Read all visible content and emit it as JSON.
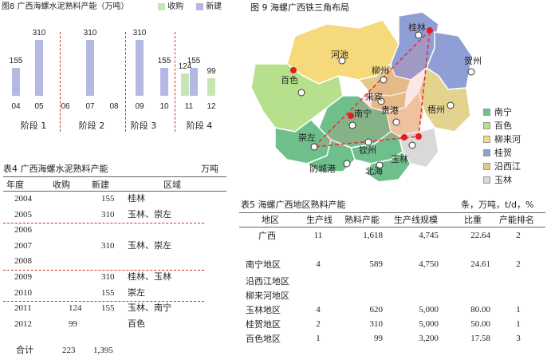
{
  "fig8": {
    "title": "图8 广西海螺水泥熟料产能（万吨）",
    "legend": [
      {
        "label": "收购",
        "color": "#c8e6b4"
      },
      {
        "label": "新建",
        "color": "#b6b8e4"
      }
    ],
    "stages": [
      "阶段 1",
      "阶段 2",
      "阶段 3",
      "阶段 4"
    ],
    "chart_data": {
      "type": "bar",
      "title": "图8 广西海螺水泥熟料产能（万吨）",
      "categories": [
        "04",
        "05",
        "06",
        "07",
        "08",
        "09",
        "10",
        "11",
        "12"
      ],
      "series": [
        {
          "name": "收购",
          "values": [
            null,
            null,
            null,
            null,
            null,
            null,
            null,
            124,
            99
          ]
        },
        {
          "name": "新建",
          "values": [
            155,
            310,
            null,
            310,
            null,
            310,
            155,
            155,
            null
          ]
        }
      ],
      "ylim": [
        0,
        330
      ],
      "grid": false,
      "legend_position": "top"
    }
  },
  "tbl4": {
    "title": "表4 广西海螺水泥熟料产能",
    "unit": "万吨",
    "headers": [
      "年度",
      "收购",
      "新建",
      "区域"
    ],
    "rows": [
      {
        "year": "2004",
        "acq": "",
        "new": "155",
        "region": "桂林"
      },
      {
        "year": "2005",
        "acq": "",
        "new": "310",
        "region": "玉林、崇左"
      },
      {
        "year": "2006",
        "acq": "",
        "new": "",
        "region": ""
      },
      {
        "year": "2007",
        "acq": "",
        "new": "310",
        "region": "玉林、崇左"
      },
      {
        "year": "2008",
        "acq": "",
        "new": "",
        "region": ""
      },
      {
        "year": "2009",
        "acq": "",
        "new": "310",
        "region": "桂林、玉林"
      },
      {
        "year": "2010",
        "acq": "",
        "new": "155",
        "region": "崇左"
      },
      {
        "year": "2011",
        "acq": "124",
        "new": "155",
        "region": "玉林、南宁"
      },
      {
        "year": "2012",
        "acq": "99",
        "new": "",
        "region": "百色"
      }
    ],
    "total": {
      "label": "合计",
      "acq": "223",
      "new": "1,395"
    }
  },
  "fig9": {
    "title": "图 9 海螺广西铁三角布局",
    "cities": [
      "桂林",
      "河池",
      "贺州",
      "柳州",
      "百色",
      "来宾",
      "梧州",
      "南宁",
      "贵港",
      "崇左",
      "钦州",
      "玉林",
      "防城港",
      "北海"
    ],
    "legend": [
      {
        "label": "南宁",
        "color": "#6fbf8c"
      },
      {
        "label": "百色",
        "color": "#b7e08c"
      },
      {
        "label": "柳来河",
        "color": "#f5d97a"
      },
      {
        "label": "桂贺",
        "color": "#8f9fd6"
      },
      {
        "label": "沿西江",
        "color": "#e3c98d"
      },
      {
        "label": "玉林",
        "color": "#d9d9d9"
      }
    ]
  },
  "tbl5": {
    "title": "表5 海螺广西地区熟料产能",
    "unit": "条，万吨，t/d，%",
    "headers": [
      "地区",
      "生产线",
      "熟料产能",
      "生产线规模",
      "比重",
      "产能排名"
    ],
    "rows": [
      {
        "region": "广西",
        "lines": "11",
        "capacity": "1,618",
        "scale": "4,745",
        "share": "22.64",
        "rank": "2"
      },
      {
        "region": "南宁地区",
        "lines": "4",
        "capacity": "589",
        "scale": "4,750",
        "share": "24.61",
        "rank": "2"
      },
      {
        "region": "沿西江地区",
        "lines": "",
        "capacity": "",
        "scale": "",
        "share": "",
        "rank": ""
      },
      {
        "region": "柳来河地区",
        "lines": "",
        "capacity": "",
        "scale": "",
        "share": "",
        "rank": ""
      },
      {
        "region": "玉林地区",
        "lines": "4",
        "capacity": "620",
        "scale": "5,000",
        "share": "80.00",
        "rank": "1"
      },
      {
        "region": "桂贺地区",
        "lines": "2",
        "capacity": "310",
        "scale": "5,000",
        "share": "50.00",
        "rank": "1"
      },
      {
        "region": "百色地区",
        "lines": "1",
        "capacity": "99",
        "scale": "3,200",
        "share": "17.58",
        "rank": "3"
      }
    ]
  }
}
